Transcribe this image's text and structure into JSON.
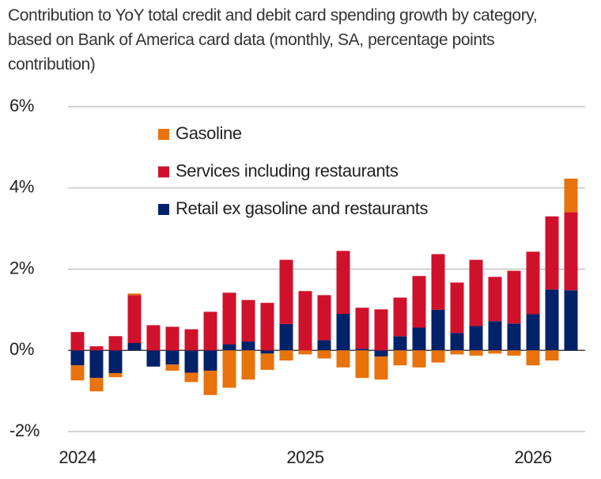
{
  "chart_data": {
    "type": "bar",
    "stacked": true,
    "title": "Contribution to YoY total credit and debit card spending growth by category, based on Bank of America card data (monthly, SA, percentage points contribution)",
    "categories": [
      "2024",
      null,
      null,
      null,
      null,
      null,
      null,
      null,
      null,
      null,
      null,
      null,
      "2025",
      null,
      null,
      null,
      null,
      null,
      null,
      null,
      null,
      null,
      null,
      null,
      "2026",
      null,
      null
    ],
    "series": [
      {
        "name": "Retail ex gasoline and restaurants",
        "color": "#012169",
        "values": [
          -0.37,
          -0.68,
          -0.56,
          0.18,
          -0.4,
          -0.35,
          -0.55,
          -0.5,
          0.15,
          0.22,
          -0.08,
          0.65,
          0.0,
          0.25,
          0.9,
          0.04,
          -0.15,
          0.35,
          0.56,
          1.0,
          0.43,
          0.6,
          0.72,
          0.66,
          0.89,
          1.5,
          1.48
        ]
      },
      {
        "name": "Services including restaurants",
        "color": "#d0112b",
        "values": [
          0.45,
          0.1,
          0.35,
          1.18,
          0.62,
          0.58,
          0.52,
          0.95,
          1.27,
          1.02,
          1.17,
          1.58,
          1.46,
          1.11,
          1.55,
          1.01,
          1.01,
          0.95,
          1.27,
          1.37,
          1.24,
          1.63,
          1.09,
          1.3,
          1.54,
          1.8,
          1.92
        ]
      },
      {
        "name": "Gasoline",
        "color": "#e8720c",
        "values": [
          -0.37,
          -0.33,
          -0.1,
          0.04,
          0.0,
          -0.15,
          -0.23,
          -0.6,
          -0.92,
          -0.72,
          -0.4,
          -0.25,
          -0.1,
          -0.2,
          -0.42,
          -0.68,
          -0.57,
          -0.37,
          -0.42,
          -0.3,
          -0.1,
          -0.13,
          -0.08,
          -0.13,
          -0.37,
          -0.25,
          0.83
        ]
      }
    ],
    "ylim": [
      -2,
      6
    ],
    "yticks": [
      {
        "value": -2,
        "label": "-2%"
      },
      {
        "value": 0,
        "label": "0%"
      },
      {
        "value": 2,
        "label": "2%"
      },
      {
        "value": 4,
        "label": "4%"
      },
      {
        "value": 6,
        "label": "6%"
      }
    ],
    "grid": true,
    "legend": "top-left"
  }
}
